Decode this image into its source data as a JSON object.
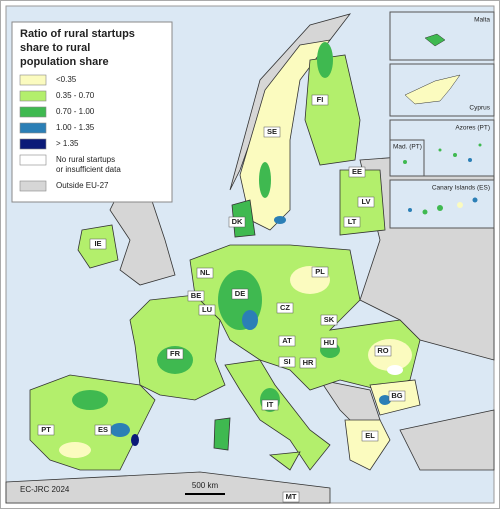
{
  "title": [
    "Ratio of rural startups",
    "share to rural",
    "population share"
  ],
  "legend": [
    {
      "label": [
        "<0.35"
      ],
      "color": "#fbfbbf"
    },
    {
      "label": [
        "0.35 - 0.70"
      ],
      "color": "#b3ef6c"
    },
    {
      "label": [
        "0.70 - 1.00"
      ],
      "color": "#3fb950"
    },
    {
      "label": [
        "1.00 - 1.35"
      ],
      "color": "#2b7fb6"
    },
    {
      "label": [
        "> 1.35"
      ],
      "color": "#0b1a78"
    },
    {
      "label": [
        "No rural startups",
        "or insufficient data"
      ],
      "color": "#ffffff"
    },
    {
      "label": [
        "Outside EU-27"
      ],
      "color": "#d6d6d6"
    }
  ],
  "insets": [
    "Malta",
    "Cyprus",
    "Azores (PT)",
    "Mad. (PT)",
    "Canary Islands (ES)"
  ],
  "countries": [
    "FI",
    "SE",
    "EE",
    "LV",
    "LT",
    "DK",
    "IE",
    "NL",
    "PL",
    "BE",
    "DE",
    "LU",
    "CZ",
    "SK",
    "FR",
    "AT",
    "HU",
    "RO",
    "SI",
    "HR",
    "IT",
    "BG",
    "PT",
    "ES",
    "EL",
    "MT"
  ],
  "scale": "500 km",
  "credit": "EC-JRC 2024"
}
